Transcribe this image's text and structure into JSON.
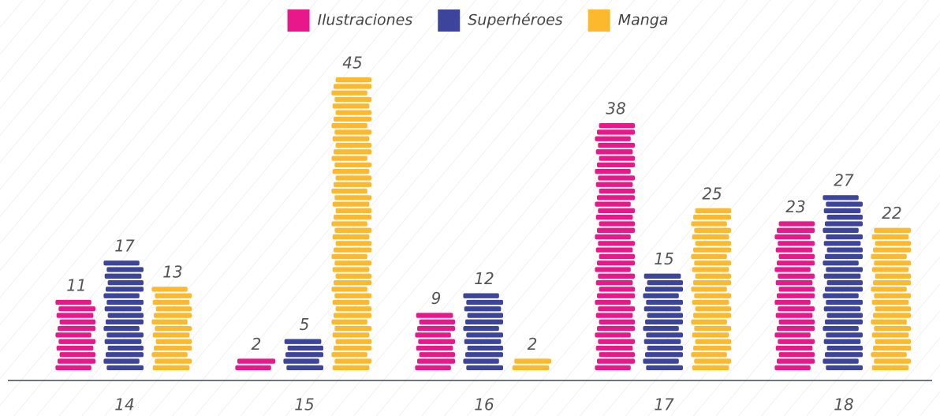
{
  "chart_data": {
    "type": "bar",
    "categories": [
      "14",
      "15",
      "16",
      "17",
      "18"
    ],
    "series": [
      {
        "name": "Ilustraciones",
        "color": "#e8178a",
        "values": [
          11,
          2,
          9,
          38,
          23
        ]
      },
      {
        "name": "Superhéroes",
        "color": "#3d449c",
        "values": [
          17,
          5,
          12,
          15,
          27
        ]
      },
      {
        "name": "Manga",
        "color": "#fdb92e",
        "values": [
          13,
          45,
          2,
          25,
          22
        ]
      }
    ],
    "legend": "top"
  }
}
